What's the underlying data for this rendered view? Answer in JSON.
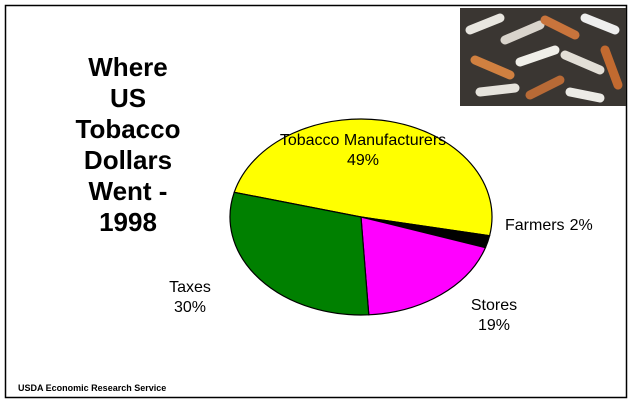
{
  "chart_data": {
    "type": "pie",
    "title": "Where US Tobacco Dollars Went - 1998",
    "categories": [
      "Tobacco Manufacturers",
      "Farmers",
      "Stores",
      "Taxes"
    ],
    "values": [
      49,
      2,
      19,
      30
    ],
    "value_labels": [
      "49%",
      "2%",
      "19%",
      "30%"
    ],
    "colors": [
      "#ffff00",
      "#000000",
      "#ff00ff",
      "#008000"
    ],
    "source": "USDA Economic Research Service"
  }
}
